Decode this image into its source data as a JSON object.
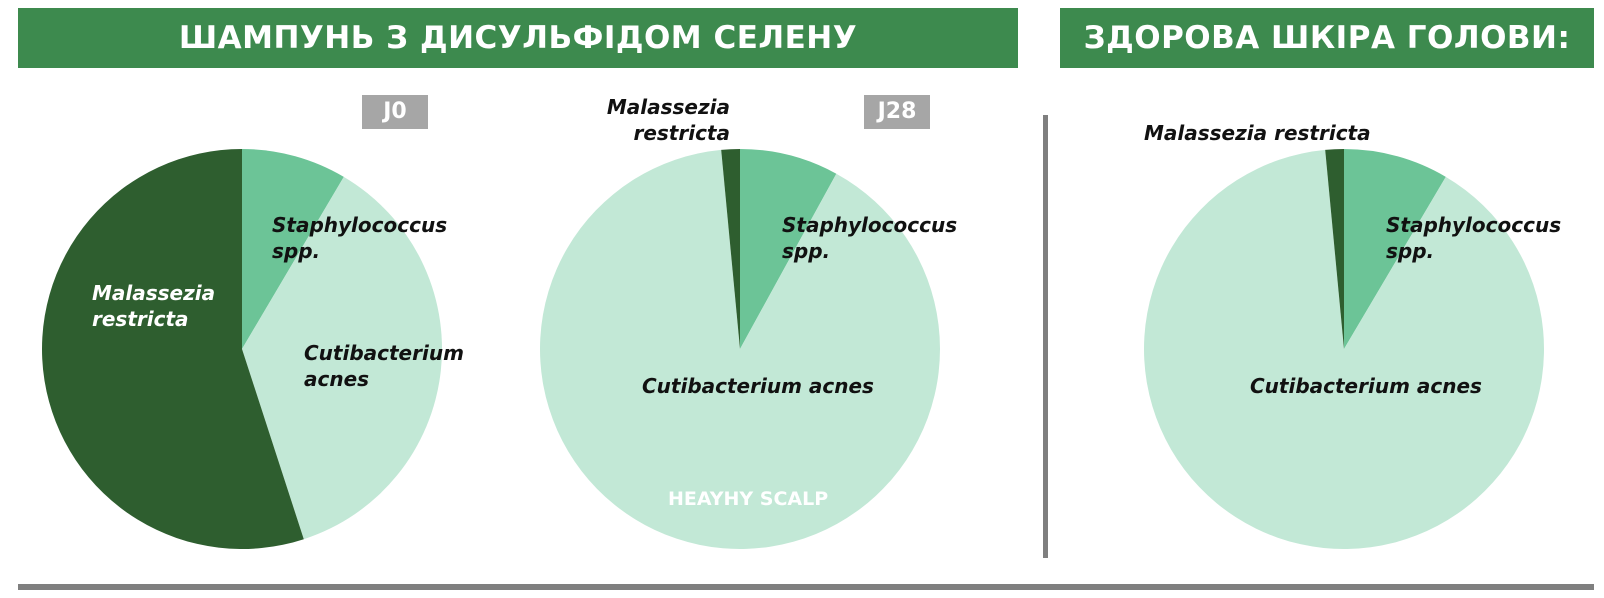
{
  "header": {
    "left_title": "ШАМПУНЬ З ДИСУЛЬФІДОМ СЕЛЕНУ",
    "right_title": "ЗДОРОВА ШКІРА ГОЛОВИ:"
  },
  "watermark": "HEAYHY SCALP",
  "colors": {
    "banner": "#3d8a4e",
    "malassezia": "#2e5e2f",
    "staphylococcus": "#6cc497",
    "cutibacterium": "#c2e8d6",
    "tag": "#a6a6a6",
    "divider": "#7f7f7f"
  },
  "chart_data": [
    {
      "type": "pie",
      "title": "J0",
      "labels": [
        "Staphylococcus spp.",
        "Cutibacterium acnes",
        "Malassezia restricta"
      ],
      "values": [
        8.5,
        36.5,
        55
      ],
      "label_lines": [
        [
          "Staphylococcus",
          "spp."
        ],
        [
          "Cutibacterium",
          "acnes"
        ],
        [
          "Malassezia",
          "restricta"
        ]
      ]
    },
    {
      "type": "pie",
      "title": "J28",
      "labels": [
        "Staphylococcus spp.",
        "Cutibacterium acnes",
        "Malassezia restricta"
      ],
      "values": [
        8,
        90.5,
        1.5
      ],
      "label_lines": [
        [
          "Staphylococcus",
          "spp."
        ],
        [
          "Cutibacterium acnes"
        ],
        [
          "Malassezia",
          "restricta"
        ]
      ]
    },
    {
      "type": "pie",
      "title": "",
      "labels": [
        "Staphylococcus spp.",
        "Cutibacterium acnes",
        "Malassezia restricta"
      ],
      "values": [
        8.5,
        90,
        1.5
      ],
      "label_lines": [
        [
          "Staphylococcus",
          "spp."
        ],
        [
          "Cutibacterium acnes"
        ],
        [
          "Malassezia restricta"
        ]
      ]
    }
  ]
}
